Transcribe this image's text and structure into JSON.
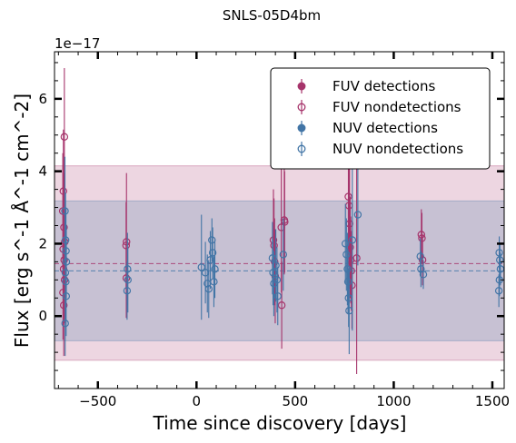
{
  "chart_data": {
    "type": "scatter",
    "title": "SNLS-05D4bm",
    "xlabel": "Time since discovery [days]",
    "ylabel": "Flux [erg s^-1 Å^-1 cm^-2]",
    "y_offset_text": "1e−17",
    "xlim": [
      -720,
      1560
    ],
    "ylim": [
      -2.0,
      7.3
    ],
    "y_scale_factor": 1e-17,
    "xticks": [
      -500,
      0,
      500,
      1000,
      1500
    ],
    "xtick_labels": [
      "−500",
      "0",
      "500",
      "1000",
      "1500"
    ],
    "yticks": [
      0,
      2,
      4,
      6
    ],
    "ytick_labels": [
      "0",
      "2",
      "4",
      "6"
    ],
    "grid": false,
    "legend_position": "upper right",
    "colors": {
      "fuv": "#a6346b",
      "nuv": "#4275a6"
    },
    "bands": [
      {
        "name": "FUV",
        "median": 1.45,
        "low": -1.22,
        "high": 4.15,
        "color": "#a6346b",
        "fill_opacity": 0.2
      },
      {
        "name": "NUV",
        "median": 1.25,
        "low": -0.68,
        "high": 3.18,
        "color": "#4275a6",
        "fill_opacity": 0.22
      }
    ],
    "legend": [
      {
        "label": "FUV detections",
        "color": "#a6346b",
        "filled": true
      },
      {
        "label": "FUV nondetections",
        "color": "#a6346b",
        "filled": false
      },
      {
        "label": "NUV detections",
        "color": "#4275a6",
        "filled": true
      },
      {
        "label": "NUV nondetections",
        "color": "#4275a6",
        "filled": false
      }
    ],
    "series": [
      {
        "name": "FUV nondetections",
        "band": "FUV",
        "filled": false,
        "points": [
          {
            "x": -670,
            "y": 4.95,
            "err": 1.9
          },
          {
            "x": -675,
            "y": 3.45,
            "err": 1.7
          },
          {
            "x": -678,
            "y": 2.9,
            "err": 1.6
          },
          {
            "x": -672,
            "y": 2.45,
            "err": 1.5
          },
          {
            "x": -668,
            "y": 2.05,
            "err": 1.4
          },
          {
            "x": -676,
            "y": 1.85,
            "err": 1.3
          },
          {
            "x": -671,
            "y": 1.55,
            "err": 1.2
          },
          {
            "x": -674,
            "y": 1.3,
            "err": 1.1
          },
          {
            "x": -669,
            "y": 1.0,
            "err": 1.2
          },
          {
            "x": -677,
            "y": 0.65,
            "err": 1.3
          },
          {
            "x": -673,
            "y": 0.3,
            "err": 1.4
          },
          {
            "x": -355,
            "y": 2.05,
            "err": 1.9
          },
          {
            "x": -357,
            "y": 1.95,
            "err": 1.2
          },
          {
            "x": -356,
            "y": 1.05,
            "err": 1.1
          },
          {
            "x": 390,
            "y": 2.1,
            "err": 1.4
          },
          {
            "x": 393,
            "y": 1.95,
            "err": 1.3
          },
          {
            "x": 396,
            "y": 1.5,
            "err": 1.2
          },
          {
            "x": 399,
            "y": 1.1,
            "err": 1.3
          },
          {
            "x": 430,
            "y": 2.45,
            "err": 1.8
          },
          {
            "x": 432,
            "y": 0.3,
            "err": 1.2
          },
          {
            "x": 445,
            "y": 2.65,
            "err": 1.5
          },
          {
            "x": 447,
            "y": 2.6,
            "err": 1.4
          },
          {
            "x": 770,
            "y": 3.3,
            "err": 1.6
          },
          {
            "x": 773,
            "y": 3.05,
            "err": 1.7
          },
          {
            "x": 776,
            "y": 2.55,
            "err": 1.8
          },
          {
            "x": 779,
            "y": 1.9,
            "err": 1.4
          },
          {
            "x": 782,
            "y": 1.55,
            "err": 1.2
          },
          {
            "x": 785,
            "y": 1.25,
            "err": 1.1
          },
          {
            "x": 788,
            "y": 0.85,
            "err": 1.2
          },
          {
            "x": 812,
            "y": 1.6,
            "err": 3.2
          },
          {
            "x": 1140,
            "y": 2.25,
            "err": 0.7
          },
          {
            "x": 1143,
            "y": 2.15,
            "err": 0.7
          },
          {
            "x": 1146,
            "y": 1.55,
            "err": 0.7
          }
        ]
      },
      {
        "name": "NUV nondetections",
        "band": "NUV",
        "filled": false,
        "points": [
          {
            "x": -667,
            "y": 2.9,
            "err": 1.5
          },
          {
            "x": -664,
            "y": 2.1,
            "err": 1.3
          },
          {
            "x": -662,
            "y": 1.8,
            "err": 1.2
          },
          {
            "x": -660,
            "y": 1.5,
            "err": 1.0
          },
          {
            "x": -665,
            "y": 1.2,
            "err": 1.0
          },
          {
            "x": -663,
            "y": 0.95,
            "err": 1.1
          },
          {
            "x": -661,
            "y": 0.55,
            "err": 1.1
          },
          {
            "x": -666,
            "y": -0.2,
            "err": 0.9
          },
          {
            "x": -350,
            "y": 1.3,
            "err": 1.0
          },
          {
            "x": -348,
            "y": 1.0,
            "err": 0.9
          },
          {
            "x": -352,
            "y": 0.7,
            "err": 0.8
          },
          {
            "x": 25,
            "y": 1.35,
            "err": 1.45
          },
          {
            "x": 45,
            "y": 1.2,
            "err": 0.85
          },
          {
            "x": 55,
            "y": 0.9,
            "err": 0.8
          },
          {
            "x": 62,
            "y": 0.75,
            "err": 0.8
          },
          {
            "x": 70,
            "y": 1.55,
            "err": 0.8
          },
          {
            "x": 78,
            "y": 2.1,
            "err": 0.6
          },
          {
            "x": 82,
            "y": 1.75,
            "err": 0.7
          },
          {
            "x": 88,
            "y": 0.95,
            "err": 0.7
          },
          {
            "x": 93,
            "y": 1.3,
            "err": 0.8
          },
          {
            "x": 385,
            "y": 1.6,
            "err": 1.0
          },
          {
            "x": 388,
            "y": 1.2,
            "err": 0.9
          },
          {
            "x": 392,
            "y": 0.9,
            "err": 0.9
          },
          {
            "x": 402,
            "y": 1.4,
            "err": 1.0
          },
          {
            "x": 408,
            "y": 1.0,
            "err": 0.9
          },
          {
            "x": 412,
            "y": 0.55,
            "err": 0.8
          },
          {
            "x": 440,
            "y": 1.7,
            "err": 1.0
          },
          {
            "x": 755,
            "y": 2.0,
            "err": 1.1
          },
          {
            "x": 760,
            "y": 1.7,
            "err": 1.0
          },
          {
            "x": 765,
            "y": 1.3,
            "err": 1.0
          },
          {
            "x": 768,
            "y": 0.95,
            "err": 0.9
          },
          {
            "x": 771,
            "y": 0.5,
            "err": 0.8
          },
          {
            "x": 774,
            "y": 0.15,
            "err": 1.2
          },
          {
            "x": 790,
            "y": 2.1,
            "err": 2.5
          },
          {
            "x": 818,
            "y": 2.8,
            "err": 1.4
          },
          {
            "x": 1135,
            "y": 1.65,
            "err": 0.5
          },
          {
            "x": 1138,
            "y": 1.3,
            "err": 0.5
          },
          {
            "x": 1150,
            "y": 1.15,
            "err": 0.4
          },
          {
            "x": 1535,
            "y": 1.75,
            "err": 0.45
          },
          {
            "x": 1538,
            "y": 1.55,
            "err": 0.45
          },
          {
            "x": 1541,
            "y": 1.3,
            "err": 0.45
          },
          {
            "x": 1536,
            "y": 1.0,
            "err": 0.45
          },
          {
            "x": 1533,
            "y": 0.7,
            "err": 0.45
          }
        ]
      }
    ]
  }
}
